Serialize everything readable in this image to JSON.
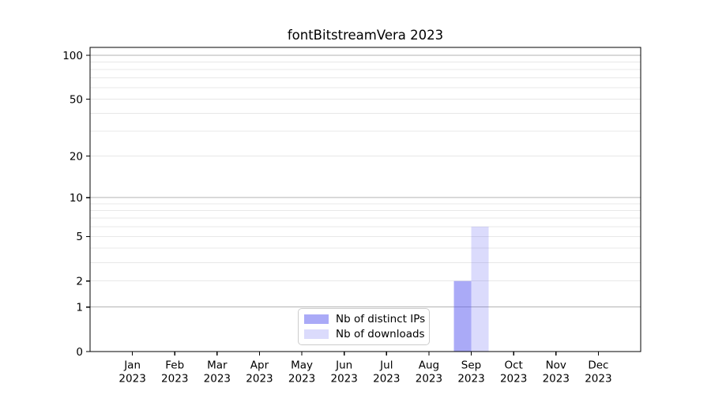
{
  "title": "fontBitstreamVera 2023",
  "chart_data": {
    "type": "bar",
    "title": "fontBitstreamVera 2023",
    "x_axis": {
      "categories": [
        {
          "month": "Jan",
          "year": "2023"
        },
        {
          "month": "Feb",
          "year": "2023"
        },
        {
          "month": "Mar",
          "year": "2023"
        },
        {
          "month": "Apr",
          "year": "2023"
        },
        {
          "month": "May",
          "year": "2023"
        },
        {
          "month": "Jun",
          "year": "2023"
        },
        {
          "month": "Jul",
          "year": "2023"
        },
        {
          "month": "Aug",
          "year": "2023"
        },
        {
          "month": "Sep",
          "year": "2023"
        },
        {
          "month": "Oct",
          "year": "2023"
        },
        {
          "month": "Nov",
          "year": "2023"
        },
        {
          "month": "Dec",
          "year": "2023"
        }
      ]
    },
    "y_axis": {
      "scale": "log1p",
      "ticks": [
        0,
        1,
        2,
        5,
        10,
        20,
        50,
        100
      ],
      "ylim": [
        0,
        113
      ],
      "major_gridlines": [
        1,
        10,
        100
      ],
      "minor_gridlines": [
        2,
        3,
        4,
        5,
        6,
        7,
        8,
        9,
        20,
        30,
        40,
        50,
        60,
        70,
        80,
        90
      ]
    },
    "series": [
      {
        "name": "Nb of distinct IPs",
        "color": "#5555f0",
        "alpha": 0.5,
        "values": [
          0,
          0,
          0,
          0,
          0,
          0,
          0,
          0,
          2,
          0,
          0,
          0
        ]
      },
      {
        "name": "Nb of downloads",
        "color": "#5555f0",
        "alpha": 0.21,
        "values": [
          0,
          0,
          0,
          0,
          0,
          0,
          0,
          0,
          6,
          0,
          0,
          0
        ]
      }
    ],
    "legend": {
      "position": "lower center",
      "items": [
        "Nb of distinct IPs",
        "Nb of downloads"
      ]
    },
    "colors": {
      "spine": "#000000",
      "major_grid": "#b3b3b3",
      "minor_grid": "#e8e8e8",
      "tick": "#000000"
    }
  }
}
